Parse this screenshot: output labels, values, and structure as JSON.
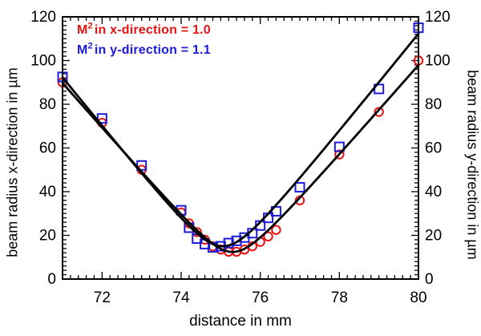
{
  "chart_data": {
    "type": "scatter",
    "xlabel": "distance in mm",
    "ylabel_left": "beam radius x-direction in µm",
    "ylabel_right": "beam radius y-direction in µm",
    "xlim": [
      71,
      80
    ],
    "ylim": [
      0,
      120
    ],
    "x_major_ticks": [
      72,
      74,
      76,
      78,
      80
    ],
    "x_minor_step": 0.2,
    "y_major_ticks": [
      0,
      20,
      40,
      60,
      80,
      100,
      120
    ],
    "y_minor_step": 2,
    "grid": false,
    "legend_position": "top-left-inside",
    "axis_color": "#000000",
    "fit_color": "#000000",
    "legend": [
      {
        "prefix": "M",
        "sup": "2",
        "text": "in x-direction = 1.0",
        "color": "#e51410"
      },
      {
        "prefix": "M",
        "sup": "2",
        "text": "in y-direction = 1.1",
        "color": "#1b1bd9"
      }
    ],
    "series": [
      {
        "name": "beam radius x-direction",
        "marker": "circle",
        "color": "#e51410",
        "points": [
          [
            71.0,
            90.0
          ],
          [
            72.0,
            71.5
          ],
          [
            73.0,
            50.0
          ],
          [
            74.0,
            30.5
          ],
          [
            74.2,
            25.5
          ],
          [
            74.4,
            21.5
          ],
          [
            74.6,
            18.0
          ],
          [
            74.8,
            15.0
          ],
          [
            75.0,
            13.5
          ],
          [
            75.2,
            12.5
          ],
          [
            75.4,
            12.5
          ],
          [
            75.6,
            13.5
          ],
          [
            75.8,
            15.0
          ],
          [
            76.0,
            17.0
          ],
          [
            76.2,
            19.5
          ],
          [
            76.4,
            22.5
          ],
          [
            77.0,
            36.0
          ],
          [
            78.0,
            57.0
          ],
          [
            79.0,
            76.5
          ],
          [
            80.0,
            100.0
          ]
        ],
        "fit": {
          "w0": 12.4,
          "z0": 75.3,
          "zR": 0.6,
          "m2_label_value": "1.0"
        }
      },
      {
        "name": "beam radius y-direction",
        "marker": "square",
        "color": "#1b1bd9",
        "points": [
          [
            71.0,
            92.5
          ],
          [
            72.0,
            73.5
          ],
          [
            73.0,
            52.0
          ],
          [
            74.0,
            31.5
          ],
          [
            74.2,
            23.5
          ],
          [
            74.4,
            18.5
          ],
          [
            74.6,
            16.0
          ],
          [
            74.8,
            14.5
          ],
          [
            75.0,
            15.0
          ],
          [
            75.2,
            16.5
          ],
          [
            75.4,
            17.5
          ],
          [
            75.6,
            19.0
          ],
          [
            75.8,
            21.0
          ],
          [
            76.0,
            24.5
          ],
          [
            76.2,
            28.0
          ],
          [
            76.4,
            31.0
          ],
          [
            77.0,
            42.0
          ],
          [
            78.0,
            60.5
          ],
          [
            79.0,
            87.0
          ],
          [
            80.0,
            115.0
          ]
        ],
        "fit": {
          "w0": 15.0,
          "z0": 75.05,
          "zR": 0.667,
          "m2_label_value": "1.1"
        }
      }
    ]
  }
}
